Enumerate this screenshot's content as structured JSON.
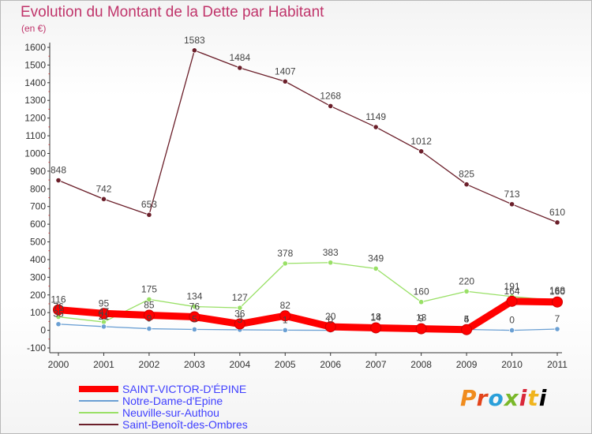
{
  "title": "Evolution du Montant de la Dette par Habitant",
  "subtitle": "(en €)",
  "logo_text": "Proxiti",
  "chart_data": {
    "type": "line",
    "title": "Evolution du Montant de la Dette par Habitant",
    "ylabel": "(en €)",
    "x": [
      "2000",
      "2001",
      "2002",
      "2003",
      "2004",
      "2005",
      "2006",
      "2007",
      "2008",
      "2009",
      "2010",
      "2011"
    ],
    "ylim": [
      -100,
      1600
    ],
    "yticks": [
      "-100",
      "0",
      "100",
      "200",
      "300",
      "400",
      "500",
      "600",
      "700",
      "800",
      "900",
      "1000",
      "1100",
      "1200",
      "1300",
      "1400",
      "1500",
      "1600"
    ],
    "grid": false,
    "legend_position": "bottom-left",
    "series": [
      {
        "name": "Saint-Benoît-des-Ombres",
        "color": "#6b1f2a",
        "values": [
          848,
          742,
          653,
          1583,
          1484,
          1407,
          1268,
          1149,
          1012,
          825,
          713,
          610
        ],
        "labels": [
          "848",
          "742",
          "653",
          "1583",
          "1484",
          "1407",
          "1268",
          "1149",
          "1012",
          "825",
          "713",
          "610"
        ]
      },
      {
        "name": "Neuville-sur-Authou",
        "color": "#99e066",
        "values": [
          76,
          47,
          175,
          134,
          127,
          378,
          383,
          349,
          160,
          220,
          191,
          168
        ],
        "labels": [
          "76",
          "47",
          "175",
          "134",
          "127",
          "378",
          "383",
          "349",
          "160",
          "220",
          "191",
          "168"
        ]
      },
      {
        "name": "Notre-Dame-d'Epine",
        "color": "#6a9fd3",
        "values": [
          35,
          21,
          9,
          5,
          3,
          1,
          0,
          18,
          13,
          5,
          0,
          7
        ],
        "labels": [
          "35",
          "21",
          "9",
          "5",
          "3",
          "1",
          "0",
          "18",
          "13",
          "5",
          "0",
          "7"
        ]
      },
      {
        "name": "SAINT-VICTOR-D'ÉPINE",
        "color": "#ff0000",
        "values": [
          116,
          95,
          85,
          76,
          36,
          82,
          20,
          14,
          9,
          4,
          164,
          160
        ],
        "labels": [
          "116",
          "95",
          "85",
          "76",
          "36",
          "82",
          "20",
          "14",
          "9",
          "4",
          "164",
          "160"
        ]
      }
    ],
    "legend": [
      {
        "name": "SAINT-VICTOR-D'ÉPINE",
        "color": "#ff0000"
      },
      {
        "name": "Notre-Dame-d'Epine",
        "color": "#6a9fd3"
      },
      {
        "name": "Neuville-sur-Authou",
        "color": "#99e066"
      },
      {
        "name": "Saint-Benoît-des-Ombres",
        "color": "#6b1f2a"
      }
    ]
  }
}
